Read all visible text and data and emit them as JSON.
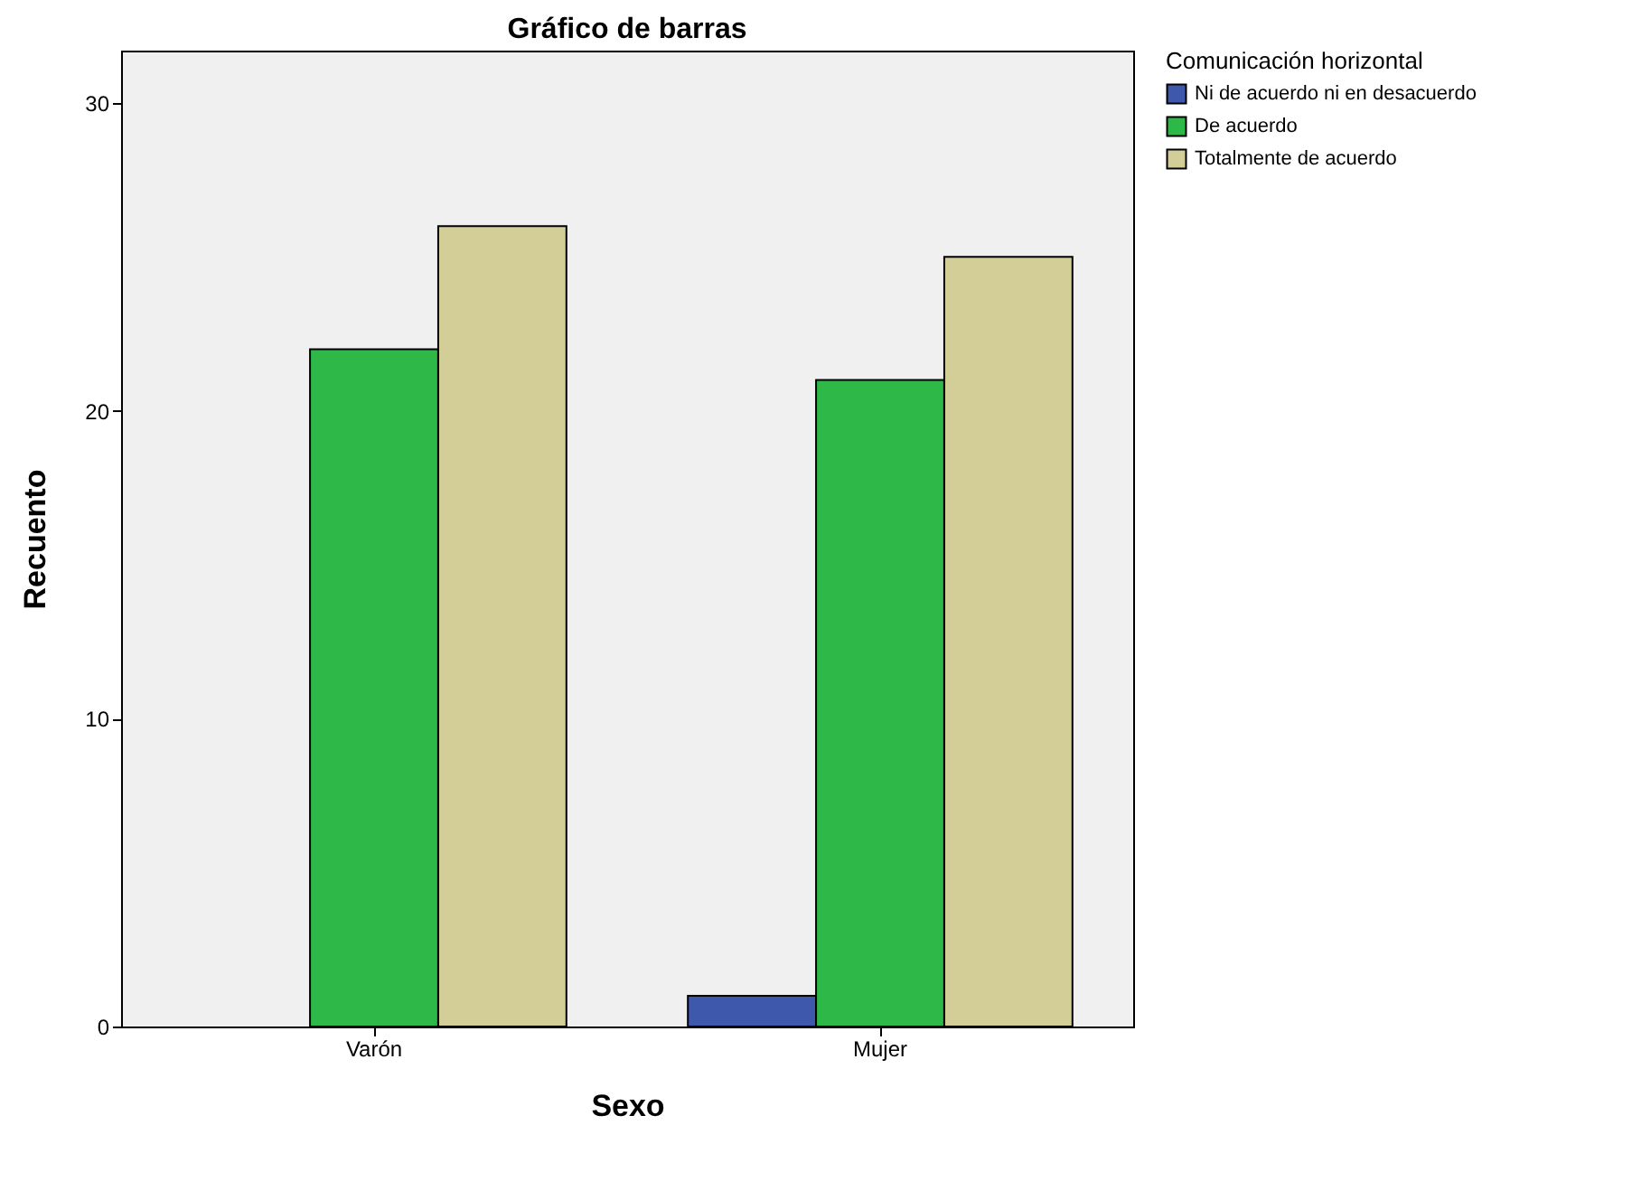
{
  "chart_data": {
    "type": "bar",
    "title": "Gráfico de barras",
    "xlabel": "Sexo",
    "ylabel": "Recuento",
    "legend_title": "Comunicación horizontal",
    "categories": [
      "Varón",
      "Mujer"
    ],
    "series": [
      {
        "name": "Ni de acuerdo ni en desacuerdo",
        "color": "#3e58ac",
        "values": [
          null,
          1
        ]
      },
      {
        "name": "De acuerdo",
        "color": "#2eb848",
        "values": [
          22,
          21
        ]
      },
      {
        "name": "Totalmente de acuerdo",
        "color": "#d3ce97",
        "values": [
          26,
          25
        ]
      }
    ],
    "ylim": [
      0,
      31.7
    ],
    "yticks": [
      0,
      10,
      20,
      30
    ],
    "grid": false,
    "legend": "top right"
  }
}
